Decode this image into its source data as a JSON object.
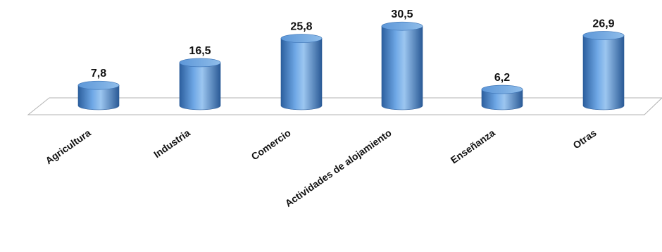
{
  "chart_data": {
    "type": "bar",
    "style": "3d-cylinder",
    "categories": [
      "Agricultura",
      "Industria",
      "Comercio",
      "Actividades de alojamiento",
      "Enseñanza",
      "Otras"
    ],
    "values": [
      7.8,
      16.5,
      25.8,
      30.5,
      6.2,
      26.9
    ],
    "value_labels": [
      "7,8",
      "16,5",
      "25,8",
      "30,5",
      "6,2",
      "26,9"
    ],
    "title": "",
    "xlabel": "",
    "ylabel": "",
    "ylim": [
      0,
      35
    ],
    "grid": false,
    "legend": "none",
    "colors": {
      "bar": "#4f8fd6",
      "bar_dark": "#2c5f9e",
      "bar_light": "#a9cdf2",
      "top": "#7fb4ea",
      "floor": "#b0b0b0"
    }
  }
}
